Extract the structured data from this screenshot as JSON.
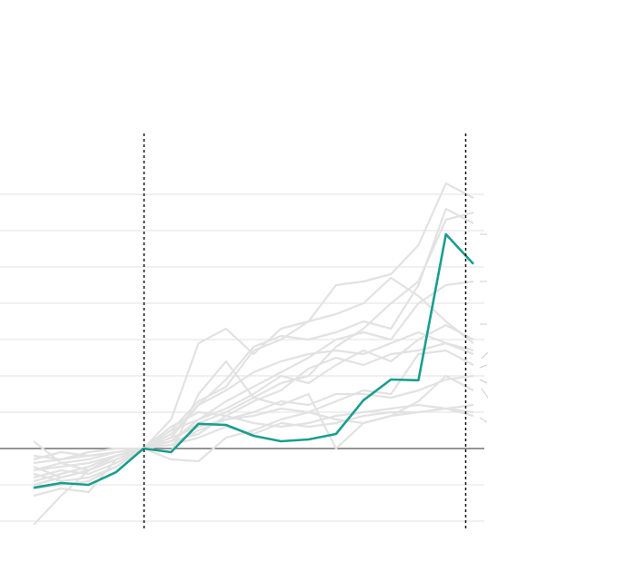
{
  "chart_data": {
    "type": "line",
    "categories": [
      null,
      null,
      null,
      null,
      null,
      null,
      null,
      null,
      null,
      null,
      null,
      null,
      null,
      null,
      null,
      null,
      null
    ],
    "ylim": [
      -2,
      7
    ],
    "yticks": [
      -2,
      -1,
      0,
      1,
      2,
      3,
      4,
      5,
      6,
      7
    ],
    "grid": true,
    "series": [
      {
        "color": "#e2e2e2",
        "values": [
          -2.1,
          -1.3,
          -0.6,
          -0.2,
          0,
          0.8,
          2.9,
          3.3,
          2.6,
          3.3,
          3.5,
          4.5,
          4.6,
          4.8,
          5.6,
          7.3,
          6.9
        ]
      },
      {
        "color": "#e2e2e2",
        "values": [
          0.2,
          -0.4,
          -0.6,
          -0.3,
          0,
          0.3,
          1.2,
          1.9,
          2.8,
          3.1,
          3.0,
          3.2,
          3.5,
          3.3,
          4.5,
          6.6,
          6.2
        ]
      },
      {
        "color": "#e2e2e2",
        "values": [
          -0.6,
          -0.4,
          -0.3,
          -0.1,
          0,
          -0.1,
          1.5,
          2.4,
          1.4,
          1.8,
          2.0,
          2.8,
          3.3,
          4.0,
          4.6,
          6.3,
          6.5
        ]
      },
      {
        "color": "#e2e2e2",
        "values": [
          -0.9,
          -0.7,
          -0.5,
          -0.2,
          0,
          0.5,
          1.3,
          1.7,
          2.7,
          3.0,
          3.5,
          3.7,
          4.0,
          4.7,
          4.2,
          3.5,
          2.9
        ]
      },
      {
        "color": "#e2e2e2",
        "values": [
          -1.3,
          -1.1,
          -1.2,
          -0.3,
          0,
          0.2,
          0.8,
          1.3,
          1.7,
          2.1,
          2.5,
          3.0,
          3.2,
          3.0,
          4.0,
          4.5,
          4.6
        ]
      },
      {
        "color": "#e2e2e2",
        "values": [
          -0.4,
          -0.3,
          -0.1,
          0,
          0,
          0.5,
          0.8,
          1.1,
          1.5,
          2.0,
          1.8,
          2.3,
          2.7,
          2.4,
          3.0,
          3.4,
          3.0
        ]
      },
      {
        "color": "#e2e2e2",
        "values": [
          -0.7,
          -0.9,
          -0.8,
          -0.5,
          0,
          0.2,
          0.4,
          0.9,
          1.3,
          1.6,
          2.2,
          2.5,
          2.3,
          2.6,
          2.7,
          2.9,
          2.6
        ]
      },
      {
        "color": "#e2e2e2",
        "values": [
          -1.1,
          -1.0,
          -0.9,
          -0.5,
          0,
          -0.3,
          -0.35,
          0.3,
          0.5,
          0.8,
          1.0,
          1.3,
          1.6,
          1.5,
          2.6,
          2.7,
          2.3
        ]
      },
      {
        "color": "#e2e2e2",
        "values": [
          -0.5,
          -0.8,
          -0.6,
          -0.3,
          0,
          0.6,
          1.0,
          0.9,
          0.7,
          0.6,
          0.7,
          0.9,
          1.0,
          1.1,
          1.2,
          1.1,
          1.0
        ]
      },
      {
        "color": "#e2e2e2",
        "values": [
          -0.2,
          -0.3,
          -0.2,
          -0.1,
          0,
          0.3,
          0.6,
          0.8,
          0.9,
          1.1,
          1.0,
          0.8,
          0.7,
          0.9,
          1.0,
          1.1,
          1.2
        ]
      },
      {
        "color": "#e2e2e2",
        "values": [
          -0.8,
          -0.6,
          -0.7,
          -0.4,
          0,
          0.4,
          1.2,
          1.6,
          2.1,
          2.4,
          2.6,
          2.7,
          2.6,
          2.9,
          3.2,
          2.9,
          2.7
        ]
      },
      {
        "color": "#e2e2e2",
        "values": [
          -1.0,
          -0.8,
          -0.6,
          -0.3,
          0,
          0.1,
          0.5,
          0.8,
          1.0,
          1.3,
          1.2,
          1.5,
          1.5,
          1.4,
          1.6,
          1.9,
          2.0
        ]
      },
      {
        "color": "#e2e2e2",
        "values": [
          -0.3,
          -0.1,
          -0.2,
          -0.1,
          0,
          0.1,
          0.3,
          0.6,
          0.4,
          0.7,
          0.6,
          0.7,
          0.9,
          1.0,
          1.0,
          1.1,
          0.9
        ]
      },
      {
        "color": "#e2e2e2",
        "values": [
          -0.6,
          -0.5,
          -0.4,
          -0.2,
          0,
          0.2,
          0.7,
          1.0,
          1.4,
          1.2,
          1.5,
          0,
          0.7,
          0.9,
          1.3,
          2.0,
          1.6
        ]
      },
      {
        "color": "#1a9e8f",
        "values": [
          -1.08,
          -0.95,
          -1.0,
          -0.65,
          0,
          -0.1,
          0.68,
          0.65,
          0.35,
          0.2,
          0.25,
          0.4,
          1.33,
          1.9,
          1.88,
          5.9,
          5.08
        ]
      }
    ]
  }
}
